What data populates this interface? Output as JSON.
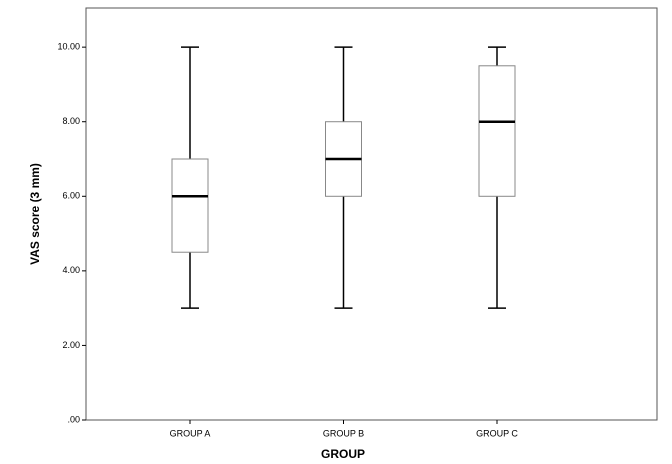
{
  "chart_data": {
    "type": "box",
    "x_label": "GROUP",
    "y_label": "VAS score (3 mm)",
    "categories": [
      "GROUP A",
      "GROUP B",
      "GROUP C"
    ],
    "boxes": [
      {
        "min": 3,
        "q1": 4.5,
        "median": 6,
        "q3": 7,
        "max": 10
      },
      {
        "min": 3,
        "q1": 6,
        "median": 7,
        "q3": 8,
        "max": 10
      },
      {
        "min": 3,
        "q1": 6,
        "median": 8,
        "q3": 9.5,
        "max": 10
      }
    ],
    "ylim": [
      0,
      11.05
    ],
    "yticks": [
      {
        "value": 0,
        "label": ".00"
      },
      {
        "value": 2,
        "label": "2.00"
      },
      {
        "value": 4,
        "label": "4.00"
      },
      {
        "value": 6,
        "label": "6.00"
      },
      {
        "value": 8,
        "label": "8.00"
      },
      {
        "value": 10,
        "label": "10.00"
      }
    ],
    "grid": false
  }
}
